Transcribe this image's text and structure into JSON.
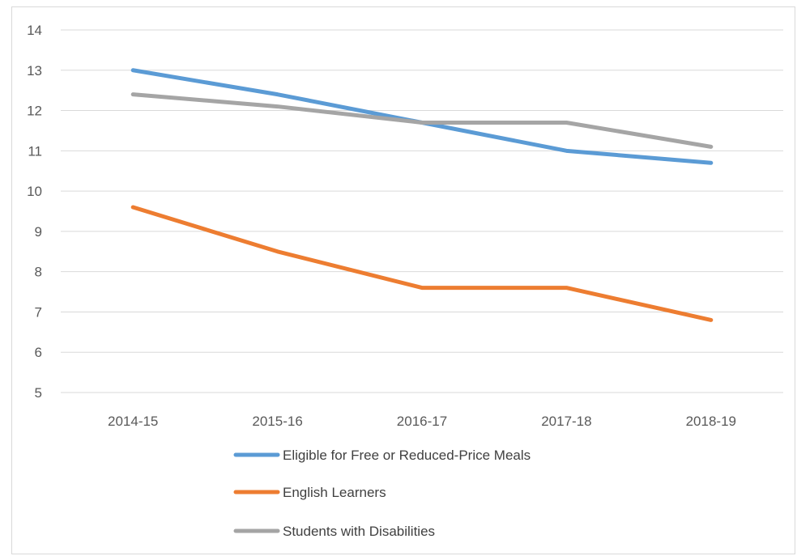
{
  "chart_data": {
    "type": "line",
    "title": "",
    "xlabel": "",
    "ylabel": "",
    "categories": [
      "2014-15",
      "2015-16",
      "2016-17",
      "2017-18",
      "2018-19"
    ],
    "ylim": [
      5,
      14
    ],
    "yticks": [
      5,
      6,
      7,
      8,
      9,
      10,
      11,
      12,
      13,
      14
    ],
    "grid": true,
    "legend_position": "bottom",
    "series": [
      {
        "name": "Eligible for Free or Reduced-Price Meals",
        "color": "#5B9BD5",
        "values": [
          13.0,
          12.4,
          11.7,
          11.0,
          10.7
        ]
      },
      {
        "name": "English Learners",
        "color": "#ED7D31",
        "values": [
          9.6,
          8.5,
          7.6,
          7.6,
          6.8
        ]
      },
      {
        "name": "Students with Disabilities",
        "color": "#A5A5A5",
        "values": [
          12.4,
          12.1,
          11.7,
          11.7,
          11.1
        ]
      }
    ]
  }
}
